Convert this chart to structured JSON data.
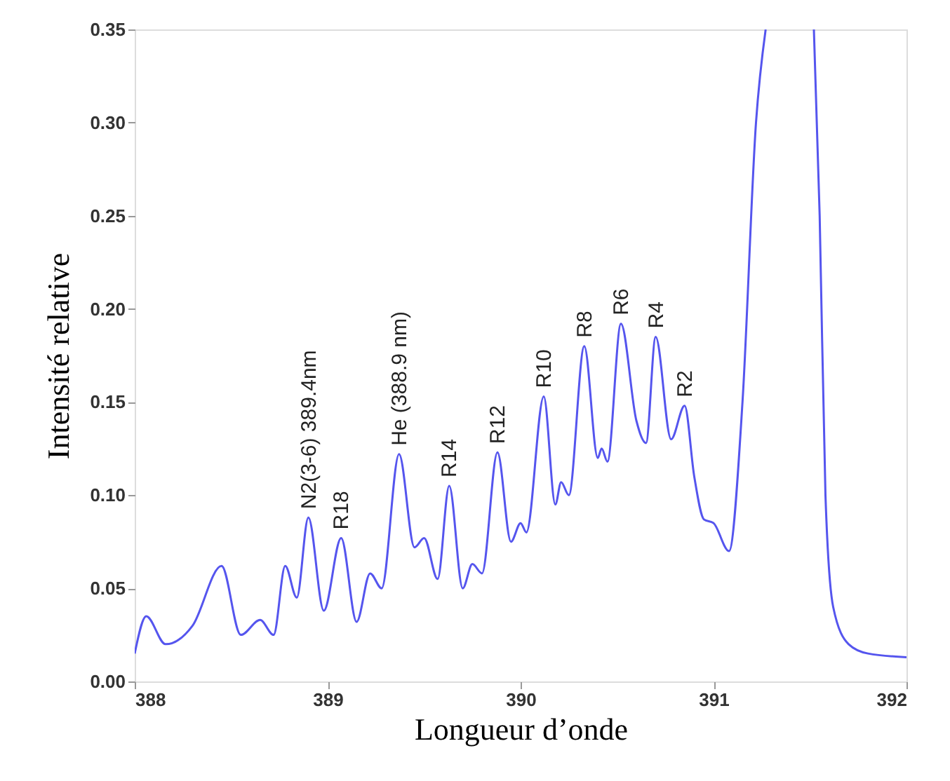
{
  "chart_data": {
    "type": "line",
    "xlabel": "Longueur d’onde",
    "ylabel": "Intensité relative",
    "x": [
      388.0,
      388.06,
      388.16,
      388.3,
      388.45,
      388.55,
      388.65,
      388.72,
      388.78,
      388.84,
      388.9,
      388.98,
      389.07,
      389.15,
      389.22,
      389.28,
      389.37,
      389.45,
      389.5,
      389.57,
      389.63,
      389.7,
      389.75,
      389.8,
      389.88,
      389.95,
      390.0,
      390.03,
      390.12,
      390.18,
      390.21,
      390.25,
      390.33,
      390.4,
      390.42,
      390.45,
      390.52,
      390.6,
      390.65,
      390.7,
      390.78,
      390.85,
      390.9,
      390.95,
      391.0,
      391.08,
      391.15,
      391.22,
      391.27,
      391.4,
      391.52,
      391.55,
      391.58,
      391.62,
      391.7,
      391.8,
      392.0
    ],
    "series": [
      {
        "color": "#5555ee",
        "values": [
          0.015,
          0.035,
          0.02,
          0.03,
          0.062,
          0.025,
          0.033,
          0.025,
          0.062,
          0.045,
          0.088,
          0.038,
          0.077,
          0.032,
          0.058,
          0.05,
          0.122,
          0.072,
          0.077,
          0.055,
          0.105,
          0.05,
          0.063,
          0.058,
          0.123,
          0.075,
          0.085,
          0.08,
          0.153,
          0.095,
          0.107,
          0.1,
          0.18,
          0.12,
          0.125,
          0.118,
          0.192,
          0.14,
          0.128,
          0.185,
          0.13,
          0.148,
          0.11,
          0.087,
          0.085,
          0.07,
          0.15,
          0.3,
          0.35,
          null,
          0.35,
          0.25,
          0.1,
          0.04,
          0.02,
          0.015,
          0.013
        ]
      }
    ],
    "xlim": [
      388,
      392
    ],
    "xticks": [
      388,
      389,
      390,
      391,
      392
    ],
    "ylim": [
      0,
      0.35
    ],
    "yticks": [
      {
        "value": 0,
        "label": "0.00"
      },
      {
        "value": 0.05,
        "label": "0.05"
      },
      {
        "value": 0.1,
        "label": "0.10"
      },
      {
        "value": 0.15,
        "label": "0.15"
      },
      {
        "value": 0.2,
        "label": "0.20"
      },
      {
        "value": 0.25,
        "label": "0.25"
      },
      {
        "value": 0.3,
        "label": "0.30"
      },
      {
        "value": 0.35,
        "label": "0.35"
      }
    ],
    "grid": false,
    "annotations": [
      {
        "text": "N2(3-6) 389.4nm",
        "x": 388.9,
        "y": 0.088
      },
      {
        "text": "R18",
        "x": 389.07,
        "y": 0.077
      },
      {
        "text": "He (388.9 nm)",
        "x": 389.37,
        "y": 0.122
      },
      {
        "text": "R14",
        "x": 389.63,
        "y": 0.105
      },
      {
        "text": "R12",
        "x": 389.88,
        "y": 0.123
      },
      {
        "text": "R10",
        "x": 390.12,
        "y": 0.153
      },
      {
        "text": "R8",
        "x": 390.33,
        "y": 0.18
      },
      {
        "text": "R6",
        "x": 390.52,
        "y": 0.192
      },
      {
        "text": "R4",
        "x": 390.7,
        "y": 0.185
      },
      {
        "text": "R2",
        "x": 390.85,
        "y": 0.148
      }
    ]
  }
}
